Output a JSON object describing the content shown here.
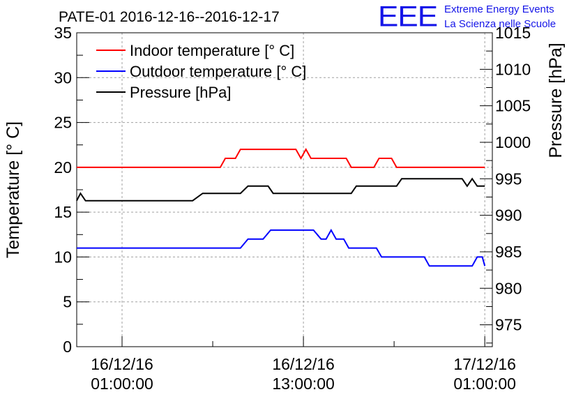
{
  "chart_data": {
    "type": "line",
    "title": "PATE-01 2016-12-16--2016-12-17",
    "ylabel": "Temperature [° C]",
    "y2label": "Pressure [hPa]",
    "ylim": [
      0,
      35
    ],
    "y2lim": [
      972,
      1015
    ],
    "yticks": [
      0,
      5,
      10,
      15,
      20,
      25,
      30,
      35
    ],
    "y2ticks": [
      975,
      980,
      985,
      990,
      995,
      1000,
      1005,
      1010,
      1015
    ],
    "xlim": [
      "2016-12-15 22:00",
      "2016-12-17 01:30"
    ],
    "xticks": [
      {
        "at": "2016-12-16 01:00",
        "line1": "16/12/16",
        "line2": "01:00:00"
      },
      {
        "at": "2016-12-16 13:00",
        "line1": "16/12/16",
        "line2": "13:00:00"
      },
      {
        "at": "2016-12-17 01:00",
        "line1": "17/12/16",
        "line2": "01:00:00"
      }
    ],
    "grid": true,
    "legend_position": "top-left",
    "series": [
      {
        "name": "Indoor temperature [° C]",
        "color": "#ff0000",
        "axis": "left",
        "points": [
          [
            "2016-12-15 22:00",
            20
          ],
          [
            "2016-12-16 00:00",
            20
          ],
          [
            "2016-12-16 02:00",
            20
          ],
          [
            "2016-12-16 04:00",
            20
          ],
          [
            "2016-12-16 06:00",
            20
          ],
          [
            "2016-12-16 07:30",
            20
          ],
          [
            "2016-12-16 07:50",
            21
          ],
          [
            "2016-12-16 08:30",
            21
          ],
          [
            "2016-12-16 08:50",
            22
          ],
          [
            "2016-12-16 10:00",
            22
          ],
          [
            "2016-12-16 11:30",
            22
          ],
          [
            "2016-12-16 12:30",
            22
          ],
          [
            "2016-12-16 12:50",
            21
          ],
          [
            "2016-12-16 13:10",
            22
          ],
          [
            "2016-12-16 13:30",
            21
          ],
          [
            "2016-12-16 14:30",
            21
          ],
          [
            "2016-12-16 15:50",
            21
          ],
          [
            "2016-12-16 16:10",
            20
          ],
          [
            "2016-12-16 17:40",
            20
          ],
          [
            "2016-12-16 18:00",
            21
          ],
          [
            "2016-12-16 18:50",
            21
          ],
          [
            "2016-12-16 19:10",
            20
          ],
          [
            "2016-12-16 21:00",
            20
          ],
          [
            "2016-12-16 23:00",
            20
          ],
          [
            "2016-12-17 01:00",
            20
          ]
        ]
      },
      {
        "name": "Outdoor temperature [° C]",
        "color": "#0000ff",
        "axis": "left",
        "points": [
          [
            "2016-12-15 22:00",
            11
          ],
          [
            "2016-12-16 02:00",
            11
          ],
          [
            "2016-12-16 05:00",
            11
          ],
          [
            "2016-12-16 08:50",
            11
          ],
          [
            "2016-12-16 09:20",
            12
          ],
          [
            "2016-12-16 10:20",
            12
          ],
          [
            "2016-12-16 10:50",
            13
          ],
          [
            "2016-12-16 12:00",
            13
          ],
          [
            "2016-12-16 13:40",
            13
          ],
          [
            "2016-12-16 14:10",
            12
          ],
          [
            "2016-12-16 14:30",
            12
          ],
          [
            "2016-12-16 14:50",
            13
          ],
          [
            "2016-12-16 15:10",
            12
          ],
          [
            "2016-12-16 15:40",
            12
          ],
          [
            "2016-12-16 16:00",
            11
          ],
          [
            "2016-12-16 17:50",
            11
          ],
          [
            "2016-12-16 18:10",
            10
          ],
          [
            "2016-12-16 19:30",
            10
          ],
          [
            "2016-12-16 21:00",
            10
          ],
          [
            "2016-12-16 21:20",
            9
          ],
          [
            "2016-12-16 23:00",
            9
          ],
          [
            "2016-12-17 00:10",
            9
          ],
          [
            "2016-12-17 00:30",
            10
          ],
          [
            "2016-12-17 00:50",
            10
          ],
          [
            "2016-12-17 01:00",
            9
          ]
        ]
      },
      {
        "name": "Pressure [hPa]",
        "color": "#000000",
        "axis": "right",
        "points": [
          [
            "2016-12-15 22:00",
            992
          ],
          [
            "2016-12-15 22:15",
            993
          ],
          [
            "2016-12-15 22:35",
            992
          ],
          [
            "2016-12-16 02:00",
            992
          ],
          [
            "2016-12-16 04:30",
            992
          ],
          [
            "2016-12-16 05:40",
            992
          ],
          [
            "2016-12-16 06:20",
            993
          ],
          [
            "2016-12-16 07:30",
            993
          ],
          [
            "2016-12-16 08:50",
            993
          ],
          [
            "2016-12-16 09:20",
            994
          ],
          [
            "2016-12-16 10:40",
            994
          ],
          [
            "2016-12-16 11:00",
            993
          ],
          [
            "2016-12-16 13:30",
            993
          ],
          [
            "2016-12-16 16:10",
            993
          ],
          [
            "2016-12-16 16:30",
            994
          ],
          [
            "2016-12-16 18:00",
            994
          ],
          [
            "2016-12-16 19:10",
            994
          ],
          [
            "2016-12-16 19:30",
            995
          ],
          [
            "2016-12-16 21:30",
            995
          ],
          [
            "2016-12-16 22:50",
            995
          ],
          [
            "2016-12-16 23:30",
            995
          ],
          [
            "2016-12-16 23:50",
            994
          ],
          [
            "2016-12-17 00:10",
            995
          ],
          [
            "2016-12-17 00:30",
            994
          ],
          [
            "2016-12-17 01:00",
            994
          ]
        ]
      }
    ]
  },
  "brand": {
    "logo": "EEE",
    "line1": "Extreme Energy Events",
    "line2": "La Scienza nelle Scuole",
    "color": "#1515e8"
  }
}
